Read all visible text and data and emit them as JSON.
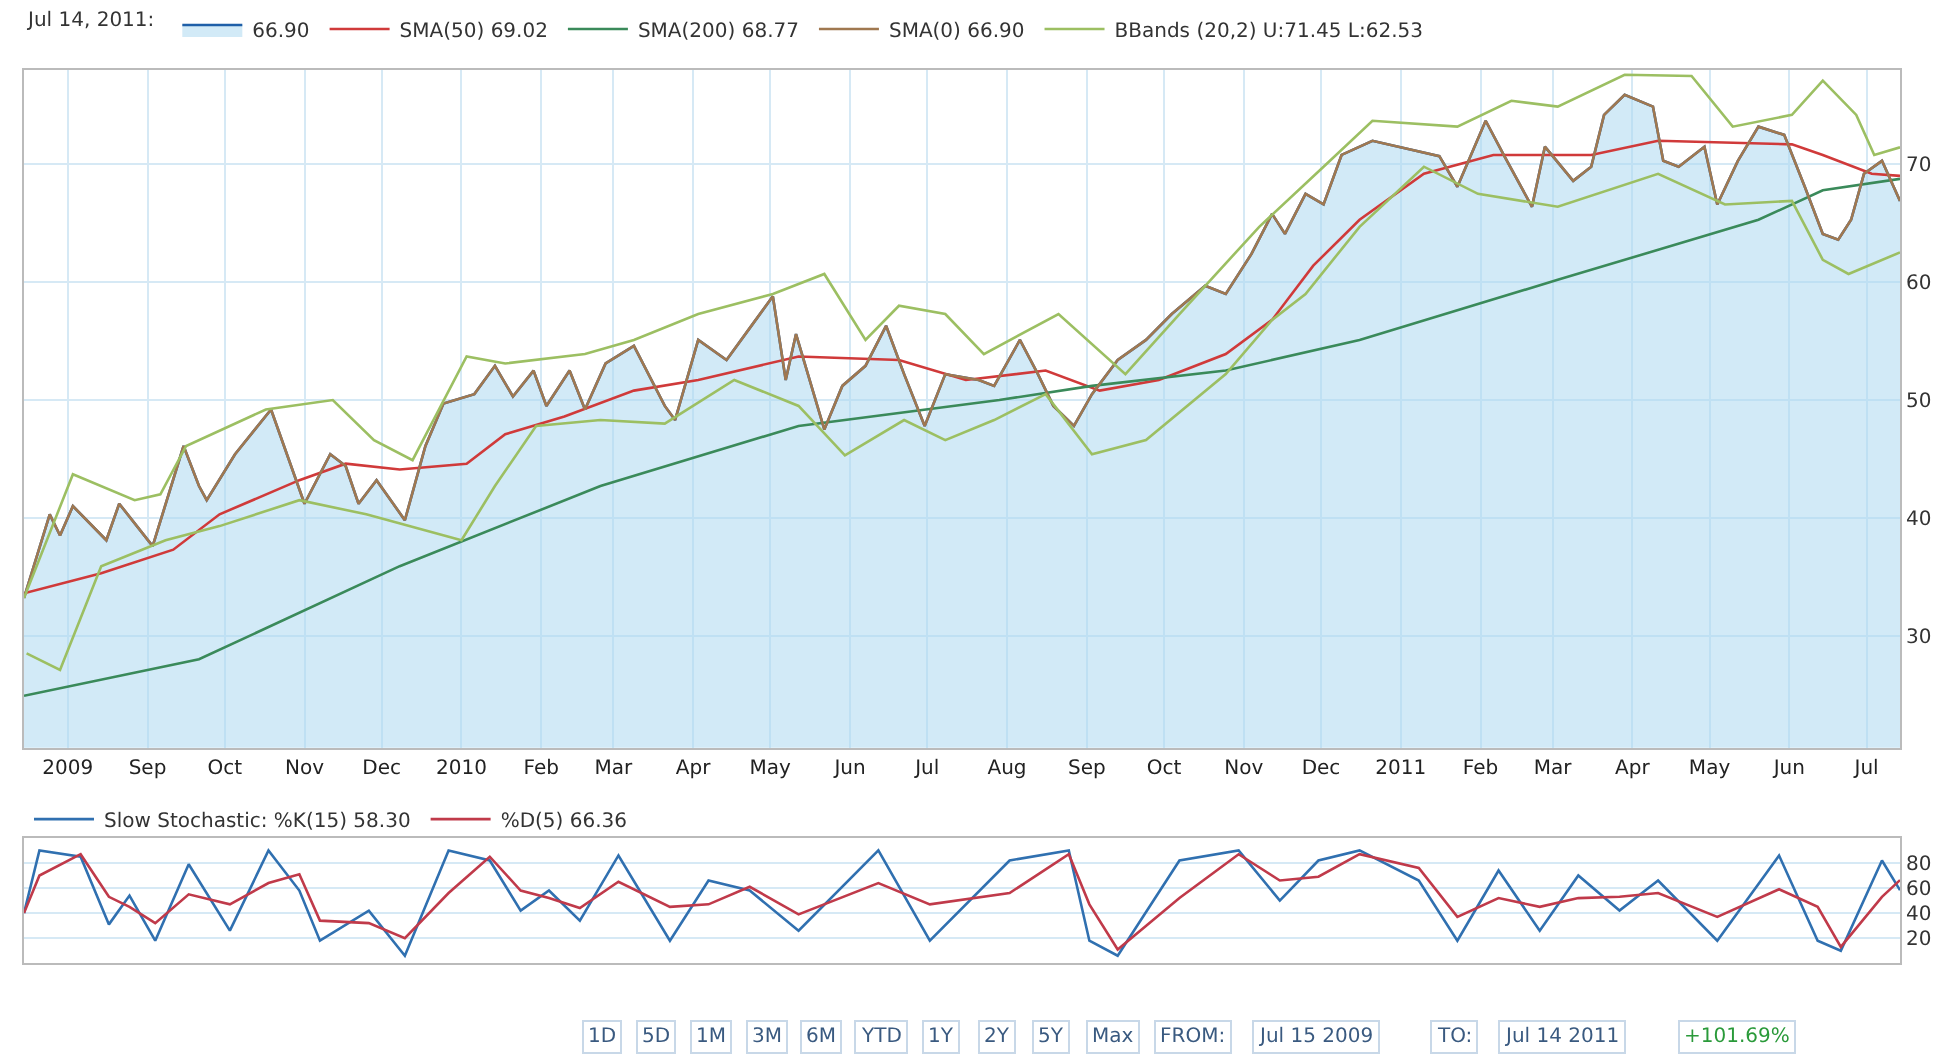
{
  "chart_data": [
    {
      "type": "line",
      "legend_title": "Jul 14, 2011:",
      "legend": "top",
      "grid": true,
      "xlim": [
        "2009-07-15",
        "2011-07-14"
      ],
      "xticks": [
        {
          "value": "2009-08-01",
          "label": "2009"
        },
        {
          "value": "2009-09-01",
          "label": "Sep"
        },
        {
          "value": "2009-10-01",
          "label": "Oct"
        },
        {
          "value": "2009-11-01",
          "label": "Nov"
        },
        {
          "value": "2009-12-01",
          "label": "Dec"
        },
        {
          "value": "2010-01-01",
          "label": "2010"
        },
        {
          "value": "2010-02-01",
          "label": "Feb"
        },
        {
          "value": "2010-03-01",
          "label": "Mar"
        },
        {
          "value": "2010-04-01",
          "label": "Apr"
        },
        {
          "value": "2010-05-01",
          "label": "May"
        },
        {
          "value": "2010-06-01",
          "label": "Jun"
        },
        {
          "value": "2010-07-01",
          "label": "Jul"
        },
        {
          "value": "2010-08-01",
          "label": "Aug"
        },
        {
          "value": "2010-09-01",
          "label": "Sep"
        },
        {
          "value": "2010-10-01",
          "label": "Oct"
        },
        {
          "value": "2010-11-01",
          "label": "Nov"
        },
        {
          "value": "2010-12-01",
          "label": "Dec"
        },
        {
          "value": "2011-01-01",
          "label": "2011"
        },
        {
          "value": "2011-02-01",
          "label": "Feb"
        },
        {
          "value": "2011-03-01",
          "label": "Mar"
        },
        {
          "value": "2011-04-01",
          "label": "Apr"
        },
        {
          "value": "2011-05-01",
          "label": "May"
        },
        {
          "value": "2011-06-01",
          "label": "Jun"
        },
        {
          "value": "2011-07-01",
          "label": "Jul"
        }
      ],
      "ylim": [
        20.5,
        78
      ],
      "yticks": [
        30,
        40,
        50,
        60,
        70
      ],
      "series": [
        {
          "name": "66.90",
          "type": "area",
          "color": "#1f5fa8",
          "x": [
            "2009-07-15",
            "2009-07-25",
            "2009-07-29",
            "2009-08-03",
            "2009-08-16",
            "2009-08-21",
            "2009-09-03",
            "2009-09-15",
            "2009-09-21",
            "2009-09-24",
            "2009-10-05",
            "2009-10-19",
            "2009-11-01",
            "2009-11-11",
            "2009-11-17",
            "2009-11-22",
            "2009-11-29",
            "2009-12-10",
            "2009-12-18",
            "2009-12-25",
            "2010-01-06",
            "2010-01-14",
            "2010-01-21",
            "2010-01-29",
            "2010-02-03",
            "2010-02-12",
            "2010-02-18",
            "2010-02-26",
            "2010-03-09",
            "2010-03-21",
            "2010-03-25",
            "2010-04-03",
            "2010-04-14",
            "2010-04-24",
            "2010-05-02",
            "2010-05-07",
            "2010-05-11",
            "2010-05-22",
            "2010-05-29",
            "2010-06-07",
            "2010-06-15",
            "2010-06-22",
            "2010-06-30",
            "2010-07-08",
            "2010-07-21",
            "2010-07-27",
            "2010-08-06",
            "2010-08-13",
            "2010-08-19",
            "2010-08-27",
            "2010-09-03",
            "2010-09-13",
            "2010-09-24",
            "2010-10-04",
            "2010-10-17",
            "2010-10-25",
            "2010-11-04",
            "2010-11-12",
            "2010-11-17",
            "2010-11-25",
            "2010-12-02",
            "2010-12-09",
            "2010-12-21",
            "2011-01-06",
            "2011-01-16",
            "2011-01-23",
            "2011-02-03",
            "2011-02-10",
            "2011-02-21",
            "2011-02-26",
            "2011-03-09",
            "2011-03-16",
            "2011-03-21",
            "2011-03-29",
            "2011-04-09",
            "2011-04-13",
            "2011-04-19",
            "2011-04-29",
            "2011-05-04",
            "2011-05-12",
            "2011-05-20",
            "2011-05-30",
            "2011-06-07",
            "2011-06-14",
            "2011-06-20",
            "2011-06-25",
            "2011-06-30",
            "2011-07-07",
            "2011-07-14"
          ],
          "values": [
            33.2,
            40.3,
            38.5,
            41.0,
            38.1,
            41.2,
            37.6,
            46.1,
            42.7,
            41.5,
            45.4,
            49.2,
            41.2,
            45.4,
            44.4,
            41.2,
            43.2,
            39.8,
            46.1,
            49.7,
            50.5,
            52.9,
            50.3,
            52.5,
            49.5,
            52.5,
            49.2,
            53.1,
            54.6,
            49.5,
            48.3,
            55.1,
            53.4,
            56.4,
            58.8,
            51.7,
            55.6,
            47.5,
            51.2,
            52.9,
            56.3,
            52.2,
            47.8,
            52.2,
            51.7,
            51.2,
            55.1,
            52.2,
            49.5,
            47.8,
            50.5,
            53.4,
            55.1,
            57.3,
            59.7,
            59.0,
            62.4,
            65.8,
            64.1,
            67.5,
            66.6,
            70.8,
            72.0,
            71.2,
            70.7,
            68.1,
            73.7,
            70.8,
            66.4,
            71.5,
            68.6,
            69.8,
            74.2,
            75.9,
            74.9,
            70.3,
            69.8,
            71.5,
            66.6,
            70.3,
            73.2,
            72.5,
            68.1,
            64.1,
            63.6,
            65.3,
            69.2,
            70.3,
            66.9
          ]
        },
        {
          "name": "SMA(50) 69.02",
          "color": "#d03a3a",
          "x": [
            "2009-07-15",
            "2009-08-14",
            "2009-09-11",
            "2009-09-29",
            "2009-10-30",
            "2009-11-17",
            "2009-12-08",
            "2010-01-03",
            "2010-01-18",
            "2010-02-10",
            "2010-03-09",
            "2010-04-03",
            "2010-05-12",
            "2010-06-20",
            "2010-07-16",
            "2010-08-16",
            "2010-09-06",
            "2010-09-29",
            "2010-10-25",
            "2010-11-12",
            "2010-11-28",
            "2010-12-16",
            "2011-01-10",
            "2011-02-06",
            "2011-03-16",
            "2011-04-11",
            "2011-06-02",
            "2011-06-14",
            "2011-07-03",
            "2011-07-14"
          ],
          "values": [
            33.6,
            35.3,
            37.3,
            40.3,
            43.2,
            44.6,
            44.1,
            44.6,
            47.1,
            48.6,
            50.8,
            51.7,
            53.7,
            53.4,
            51.7,
            52.5,
            50.8,
            51.7,
            53.9,
            56.8,
            61.4,
            65.3,
            69.2,
            70.8,
            70.8,
            72.0,
            71.7,
            70.8,
            69.2,
            69.02
          ]
        },
        {
          "name": "SMA(200) 68.77",
          "color": "#3a8a5a",
          "x": [
            "2009-07-15",
            "2009-09-21",
            "2009-12-08",
            "2010-02-24",
            "2010-05-12",
            "2010-07-29",
            "2010-09-03",
            "2010-10-25",
            "2010-12-16",
            "2011-03-03",
            "2011-05-20",
            "2011-06-14",
            "2011-07-14"
          ],
          "values": [
            24.9,
            28.0,
            35.9,
            42.7,
            47.8,
            50.0,
            51.2,
            52.5,
            55.1,
            60.2,
            65.3,
            67.8,
            68.77
          ]
        },
        {
          "name": "SMA(0) 66.90",
          "color": "#a07850",
          "x": [
            "2009-07-15",
            "2009-07-25",
            "2009-07-29",
            "2009-08-03",
            "2009-08-16",
            "2009-08-21",
            "2009-09-03",
            "2009-09-15",
            "2009-09-21",
            "2009-09-24",
            "2009-10-05",
            "2009-10-19",
            "2009-11-01",
            "2009-11-11",
            "2009-11-17",
            "2009-11-22",
            "2009-11-29",
            "2009-12-10",
            "2009-12-18",
            "2009-12-25",
            "2010-01-06",
            "2010-01-14",
            "2010-01-21",
            "2010-01-29",
            "2010-02-03",
            "2010-02-12",
            "2010-02-18",
            "2010-02-26",
            "2010-03-09",
            "2010-03-21",
            "2010-03-25",
            "2010-04-03",
            "2010-04-14",
            "2010-04-24",
            "2010-05-02",
            "2010-05-07",
            "2010-05-11",
            "2010-05-22",
            "2010-05-29",
            "2010-06-07",
            "2010-06-15",
            "2010-06-22",
            "2010-06-30",
            "2010-07-08",
            "2010-07-21",
            "2010-07-27",
            "2010-08-06",
            "2010-08-13",
            "2010-08-19",
            "2010-08-27",
            "2010-09-03",
            "2010-09-13",
            "2010-09-24",
            "2010-10-04",
            "2010-10-17",
            "2010-10-25",
            "2010-11-04",
            "2010-11-12",
            "2010-11-17",
            "2010-11-25",
            "2010-12-02",
            "2010-12-09",
            "2010-12-21",
            "2011-01-06",
            "2011-01-16",
            "2011-01-23",
            "2011-02-03",
            "2011-02-10",
            "2011-02-21",
            "2011-02-26",
            "2011-03-09",
            "2011-03-16",
            "2011-03-21",
            "2011-03-29",
            "2011-04-09",
            "2011-04-13",
            "2011-04-19",
            "2011-04-29",
            "2011-05-04",
            "2011-05-12",
            "2011-05-20",
            "2011-05-30",
            "2011-06-07",
            "2011-06-14",
            "2011-06-20",
            "2011-06-25",
            "2011-06-30",
            "2011-07-07",
            "2011-07-14"
          ],
          "values": [
            33.2,
            40.3,
            38.5,
            41.0,
            38.1,
            41.2,
            37.6,
            46.1,
            42.7,
            41.5,
            45.4,
            49.2,
            41.2,
            45.4,
            44.4,
            41.2,
            43.2,
            39.8,
            46.1,
            49.7,
            50.5,
            52.9,
            50.3,
            52.5,
            49.5,
            52.5,
            49.2,
            53.1,
            54.6,
            49.5,
            48.3,
            55.1,
            53.4,
            56.4,
            58.8,
            51.7,
            55.6,
            47.5,
            51.2,
            52.9,
            56.3,
            52.2,
            47.8,
            52.2,
            51.7,
            51.2,
            55.1,
            52.2,
            49.5,
            47.8,
            50.5,
            53.4,
            55.1,
            57.3,
            59.7,
            59.0,
            62.4,
            65.8,
            64.1,
            67.5,
            66.6,
            70.8,
            72.0,
            71.2,
            70.7,
            68.1,
            73.7,
            70.8,
            66.4,
            71.5,
            68.6,
            69.8,
            74.2,
            75.9,
            74.9,
            70.3,
            69.8,
            71.5,
            66.6,
            70.3,
            73.2,
            72.5,
            68.1,
            64.1,
            63.6,
            65.3,
            69.2,
            70.3,
            66.9
          ]
        },
        {
          "name": "BBands (20,2) U:71.45 L:62.53",
          "color": "#9cbf62",
          "x": [
            "2009-07-15",
            "2009-08-03",
            "2009-08-27",
            "2009-09-06",
            "2009-09-16",
            "2009-10-17",
            "2009-11-12",
            "2009-11-28",
            "2009-12-13",
            "2010-01-03",
            "2010-01-18",
            "2010-02-18",
            "2010-03-09",
            "2010-04-03",
            "2010-05-02",
            "2010-05-22",
            "2010-06-07",
            "2010-06-20",
            "2010-07-08",
            "2010-07-23",
            "2010-08-21",
            "2010-09-16",
            "2010-10-07",
            "2010-11-07",
            "2010-12-02",
            "2010-12-21",
            "2011-01-23",
            "2011-02-13",
            "2011-03-03",
            "2011-03-29",
            "2011-04-24",
            "2011-05-10",
            "2011-06-02",
            "2011-06-14",
            "2011-06-27",
            "2011-07-04",
            "2011-07-14"
          ],
          "values": [
            33.2,
            43.7,
            41.5,
            42.0,
            46.1,
            49.2,
            50.0,
            46.6,
            44.9,
            53.7,
            53.1,
            53.9,
            55.1,
            57.3,
            59.0,
            60.7,
            55.1,
            58.0,
            57.3,
            53.9,
            57.3,
            52.2,
            57.3,
            64.7,
            69.8,
            73.7,
            73.2,
            75.4,
            74.9,
            77.6,
            77.5,
            73.2,
            74.2,
            77.1,
            74.2,
            70.8,
            71.45
          ]
        },
        {
          "color": "#9cbf62",
          "x": [
            "2009-07-16",
            "2009-07-29",
            "2009-08-14",
            "2009-09-08",
            "2009-09-29",
            "2009-10-30",
            "2009-11-25",
            "2010-01-01",
            "2010-01-14",
            "2010-01-30",
            "2010-02-24",
            "2010-03-21",
            "2010-04-17",
            "2010-05-12",
            "2010-05-30",
            "2010-06-22",
            "2010-07-08",
            "2010-07-27",
            "2010-08-16",
            "2010-09-03",
            "2010-09-24",
            "2010-10-25",
            "2010-11-12",
            "2010-11-25",
            "2010-12-16",
            "2011-01-10",
            "2011-01-31",
            "2011-03-03",
            "2011-04-11",
            "2011-05-07",
            "2011-06-02",
            "2011-06-14",
            "2011-06-24",
            "2011-07-14"
          ],
          "values": [
            28.5,
            27.1,
            35.9,
            38.1,
            39.3,
            41.5,
            40.3,
            38.1,
            42.7,
            47.8,
            48.3,
            48.0,
            51.7,
            49.5,
            45.3,
            48.3,
            46.6,
            48.3,
            50.5,
            45.4,
            46.6,
            52.2,
            56.8,
            59.0,
            64.7,
            69.8,
            67.5,
            66.4,
            69.2,
            66.6,
            66.9,
            61.9,
            60.7,
            62.53
          ]
        }
      ]
    },
    {
      "type": "line",
      "legend": "top left",
      "grid": "y",
      "tick_labels": "y",
      "xlim": [
        "2009-07-15",
        "2011-07-14"
      ],
      "ylim": [
        0,
        100
      ],
      "yticks": [
        20,
        40,
        60,
        80
      ],
      "series": [
        {
          "name": "Slow Stochastic: %K(15) 58.30",
          "color": "#3070b0",
          "x": [
            "2009-07-15",
            "2009-07-21",
            "2009-08-06",
            "2009-08-17",
            "2009-08-25",
            "2009-09-04",
            "2009-09-17",
            "2009-10-03",
            "2009-10-18",
            "2009-10-30",
            "2009-11-07",
            "2009-11-26",
            "2009-12-10",
            "2009-12-27",
            "2010-01-12",
            "2010-01-24",
            "2010-02-04",
            "2010-02-16",
            "2010-03-03",
            "2010-03-23",
            "2010-04-07",
            "2010-04-23",
            "2010-05-12",
            "2010-06-12",
            "2010-07-02",
            "2010-08-02",
            "2010-08-25",
            "2010-09-02",
            "2010-09-13",
            "2010-10-07",
            "2010-10-30",
            "2010-11-15",
            "2010-11-30",
            "2010-12-16",
            "2011-01-08",
            "2011-01-23",
            "2011-02-08",
            "2011-02-24",
            "2011-03-11",
            "2011-03-27",
            "2011-04-11",
            "2011-05-04",
            "2011-05-28",
            "2011-06-12",
            "2011-06-21",
            "2011-07-07",
            "2011-07-14"
          ],
          "values": [
            40,
            90,
            85,
            31,
            54,
            18,
            79,
            26,
            90,
            58,
            18,
            42,
            6,
            90,
            82,
            42,
            58,
            34,
            86,
            18,
            66,
            58,
            26,
            90,
            18,
            82,
            90,
            18,
            6,
            82,
            90,
            50,
            82,
            90,
            66,
            18,
            74,
            26,
            70,
            42,
            66,
            18,
            86,
            18,
            10,
            82,
            58.3
          ]
        },
        {
          "name": "%D(5) 66.36",
          "color": "#c03a4a",
          "x": [
            "2009-07-15",
            "2009-07-21",
            "2009-08-06",
            "2009-08-17",
            "2009-08-25",
            "2009-09-04",
            "2009-09-17",
            "2009-10-03",
            "2009-10-18",
            "2009-10-30",
            "2009-11-07",
            "2009-11-26",
            "2009-12-10",
            "2009-12-27",
            "2010-01-12",
            "2010-01-24",
            "2010-02-04",
            "2010-02-16",
            "2010-03-03",
            "2010-03-23",
            "2010-04-07",
            "2010-04-23",
            "2010-05-12",
            "2010-06-12",
            "2010-07-02",
            "2010-08-02",
            "2010-08-25",
            "2010-09-02",
            "2010-09-13",
            "2010-10-07",
            "2010-10-30",
            "2010-11-15",
            "2010-11-30",
            "2010-12-16",
            "2011-01-08",
            "2011-01-23",
            "2011-02-08",
            "2011-02-24",
            "2011-03-11",
            "2011-03-27",
            "2011-04-11",
            "2011-05-04",
            "2011-05-28",
            "2011-06-12",
            "2011-06-21",
            "2011-07-07",
            "2011-07-14"
          ],
          "values": [
            40,
            70,
            87,
            53,
            45,
            32,
            55,
            47,
            64,
            71,
            34,
            32,
            20,
            56,
            85,
            58,
            52,
            44,
            65,
            45,
            47,
            61,
            39,
            64,
            47,
            56,
            87,
            47,
            11,
            52,
            87,
            66,
            69,
            87,
            76,
            37,
            52,
            45,
            52,
            53,
            56,
            37,
            59,
            45,
            13,
            53,
            66.36
          ]
        }
      ],
      "annotations": [
        "1D",
        "5D",
        "1M",
        "3M",
        "6M",
        "YTD",
        "1Y",
        "2Y",
        "5Y",
        "Max",
        "FROM:",
        "Jul 15 2009",
        "TO:",
        "Jul 14 2011",
        "+101.69%"
      ]
    }
  ]
}
